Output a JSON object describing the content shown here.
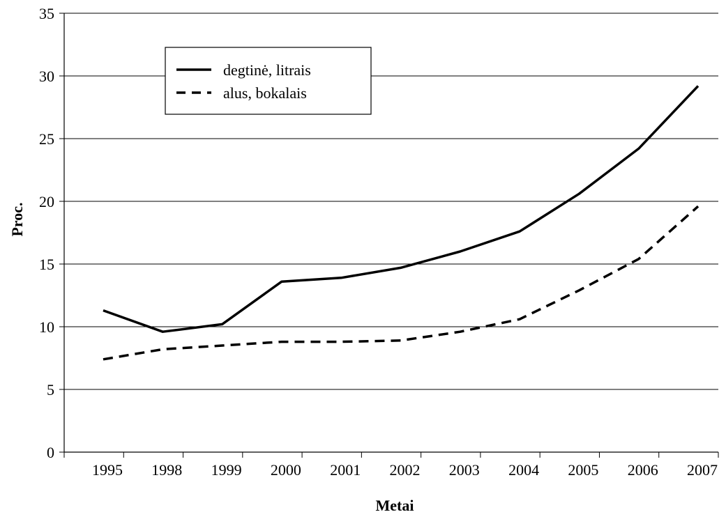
{
  "chart_data": {
    "type": "line",
    "title": "",
    "xlabel": "Metai",
    "ylabel": "Proc.",
    "categories": [
      "1995",
      "1998",
      "1999",
      "2000",
      "2001",
      "2002",
      "2003",
      "2004",
      "2005",
      "2006",
      "2007"
    ],
    "ylim": [
      0,
      35
    ],
    "yticks": [
      "0",
      "5",
      "10",
      "15",
      "20",
      "25",
      "30",
      "35"
    ],
    "grid": "horizontal",
    "legend_position": "top-left",
    "series": [
      {
        "name": "degtinė, litrais",
        "style": "solid",
        "color": "#000000",
        "values": [
          11.3,
          9.6,
          10.2,
          13.6,
          13.9,
          14.7,
          16.0,
          17.6,
          20.6,
          24.2,
          29.2
        ]
      },
      {
        "name": "alus, bokalais",
        "style": "dashed",
        "color": "#000000",
        "values": [
          7.4,
          8.2,
          8.5,
          8.8,
          8.8,
          8.9,
          9.6,
          10.6,
          12.9,
          15.4,
          19.6
        ]
      }
    ]
  }
}
